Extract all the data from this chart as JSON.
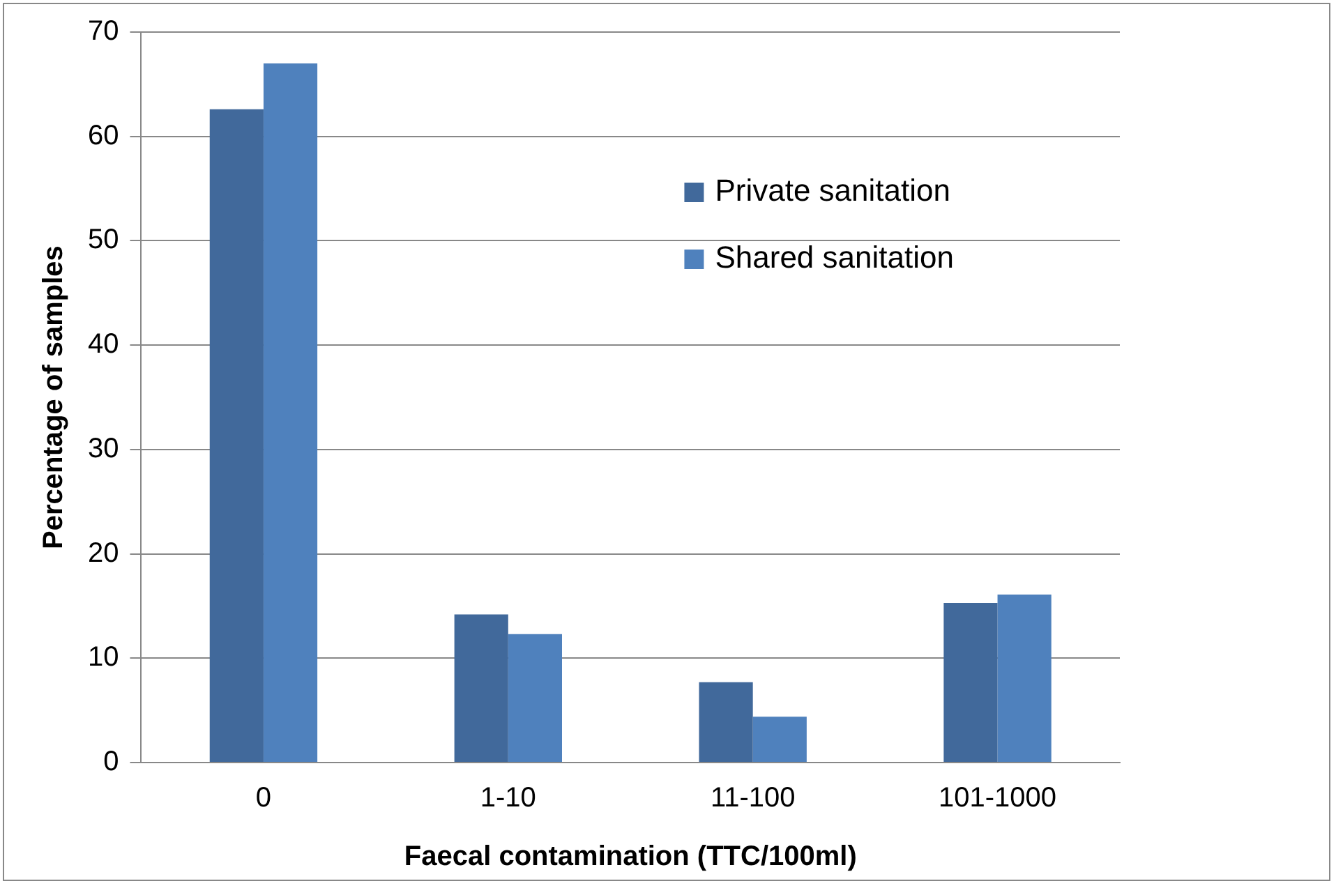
{
  "chart_data": {
    "type": "bar",
    "xlabel": "Faecal contamination (TTC/100ml)",
    "ylabel": "Percentage of samples",
    "categories": [
      "0",
      "1-10",
      "11-100",
      "101-1000"
    ],
    "series": [
      {
        "name": "Private sanitation",
        "color": "#41699b",
        "values": [
          62.6,
          14.2,
          7.7,
          15.3
        ]
      },
      {
        "name": "Shared sanitation",
        "color": "#4f81bd",
        "values": [
          67.0,
          12.3,
          4.4,
          16.1
        ]
      }
    ],
    "ylim": [
      0,
      70
    ],
    "yticks": [
      0,
      10,
      20,
      30,
      40,
      50,
      60,
      70
    ],
    "grid": "y",
    "legend": "top right"
  }
}
